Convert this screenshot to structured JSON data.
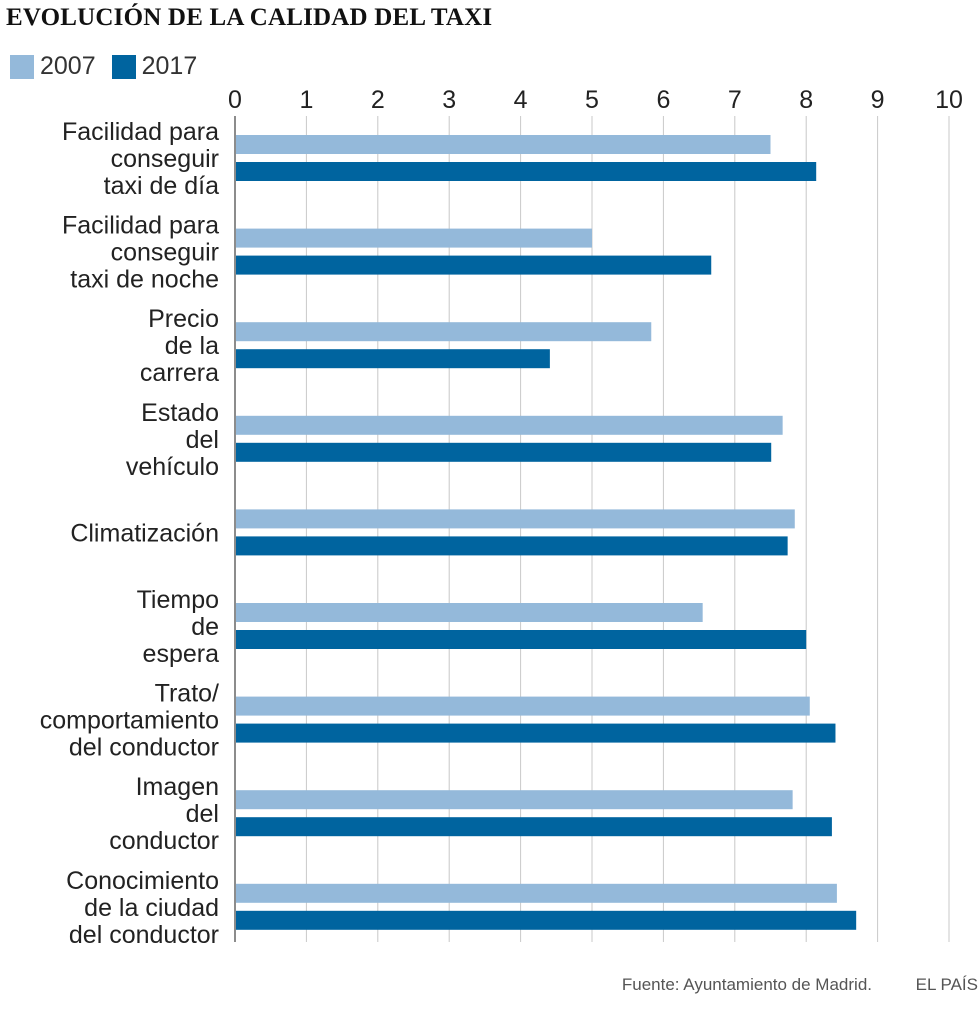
{
  "chart_data": {
    "type": "bar",
    "orientation": "horizontal",
    "title": "EVOLUCIÓN DE LA CALIDAD DEL TAXI",
    "xlim": [
      0,
      10
    ],
    "xticks": [
      "0",
      "1",
      "2",
      "3",
      "4",
      "5",
      "6",
      "7",
      "8",
      "9",
      "10"
    ],
    "grid": true,
    "legend_position": "top-left",
    "categories": [
      [
        "Facilidad para",
        "conseguir",
        "taxi de día"
      ],
      [
        "Facilidad para",
        "conseguir",
        "taxi de noche"
      ],
      [
        "Precio",
        "de la",
        "carrera"
      ],
      [
        "Estado",
        "del",
        "vehículo"
      ],
      [
        "Climatización"
      ],
      [
        "Tiempo",
        "de",
        "espera"
      ],
      [
        "Trato/",
        "comportamiento",
        "del conductor"
      ],
      [
        "Imagen",
        "del",
        "conductor"
      ],
      [
        "Conocimiento",
        "de la ciudad",
        "del conductor"
      ]
    ],
    "series": [
      {
        "name": "2007",
        "color": "#94b9da",
        "values": [
          7.5,
          5.0,
          5.83,
          7.67,
          7.84,
          6.55,
          8.05,
          7.81,
          8.43
        ]
      },
      {
        "name": "2017",
        "color": "#00649f",
        "values": [
          8.14,
          6.67,
          4.41,
          7.51,
          7.74,
          8.0,
          8.41,
          8.36,
          8.7
        ]
      }
    ]
  },
  "footer": {
    "source": "Fuente: Ayuntamiento de Madrid.",
    "brand": "EL PAÍS"
  }
}
